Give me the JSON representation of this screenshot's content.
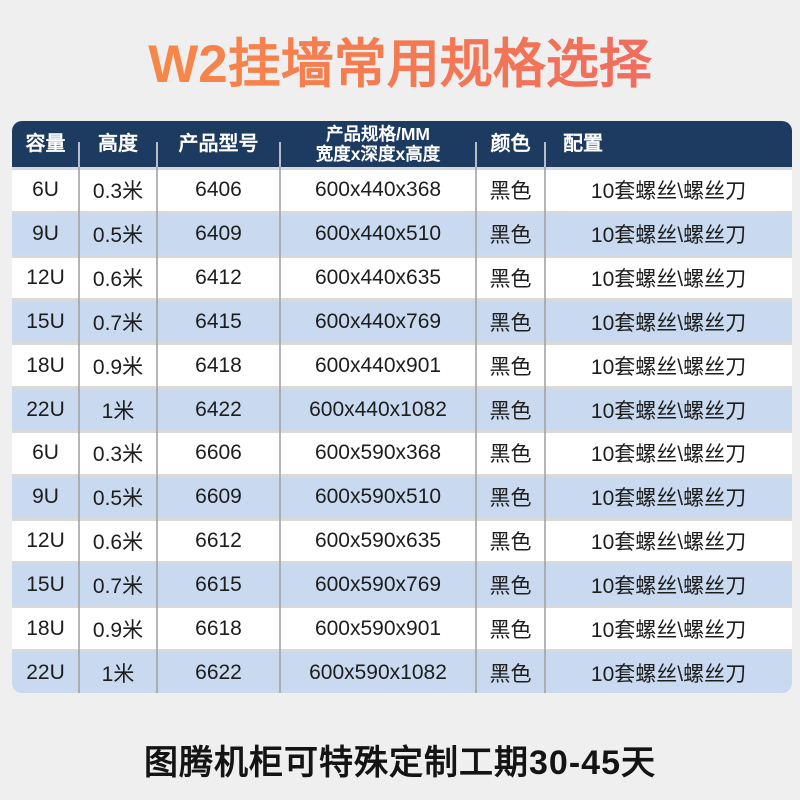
{
  "title": {
    "text": "W2挂墙常用规格选择"
  },
  "colors": {
    "page_bg": "#efeff0",
    "title_gradient_start": "#f88a45",
    "title_gradient_end": "#ef6a60",
    "header_bg": "#1d3b60",
    "header_text": "#ffffff",
    "row_bg": "#ffffff",
    "row_alt_bg": "#c9d9ef",
    "separator": "#d9d9d9"
  },
  "table": {
    "columns": [
      {
        "key": "capacity",
        "label": "容量"
      },
      {
        "key": "height",
        "label": "高度"
      },
      {
        "key": "model",
        "label": "产品型号"
      },
      {
        "key": "spec",
        "label_line1": "产品规格/MM",
        "label_line2": "宽度x深度x高度"
      },
      {
        "key": "color",
        "label": "颜色"
      },
      {
        "key": "config",
        "label": "配置"
      }
    ],
    "rows": [
      {
        "capacity": "6U",
        "height": "0.3米",
        "model": "6406",
        "spec": "600x440x368",
        "color": "黑色",
        "config": "10套螺丝\\螺丝刀"
      },
      {
        "capacity": "9U",
        "height": "0.5米",
        "model": "6409",
        "spec": "600x440x510",
        "color": "黑色",
        "config": "10套螺丝\\螺丝刀"
      },
      {
        "capacity": "12U",
        "height": "0.6米",
        "model": "6412",
        "spec": "600x440x635",
        "color": "黑色",
        "config": "10套螺丝\\螺丝刀"
      },
      {
        "capacity": "15U",
        "height": "0.7米",
        "model": "6415",
        "spec": "600x440x769",
        "color": "黑色",
        "config": "10套螺丝\\螺丝刀"
      },
      {
        "capacity": "18U",
        "height": "0.9米",
        "model": "6418",
        "spec": "600x440x901",
        "color": "黑色",
        "config": "10套螺丝\\螺丝刀"
      },
      {
        "capacity": "22U",
        "height": "1米",
        "model": "6422",
        "spec": "600x440x1082",
        "color": "黑色",
        "config": "10套螺丝\\螺丝刀"
      },
      {
        "capacity": "6U",
        "height": "0.3米",
        "model": "6606",
        "spec": "600x590x368",
        "color": "黑色",
        "config": "10套螺丝\\螺丝刀"
      },
      {
        "capacity": "9U",
        "height": "0.5米",
        "model": "6609",
        "spec": "600x590x510",
        "color": "黑色",
        "config": "10套螺丝\\螺丝刀"
      },
      {
        "capacity": "12U",
        "height": "0.6米",
        "model": "6612",
        "spec": "600x590x635",
        "color": "黑色",
        "config": "10套螺丝\\螺丝刀"
      },
      {
        "capacity": "15U",
        "height": "0.7米",
        "model": "6615",
        "spec": "600x590x769",
        "color": "黑色",
        "config": "10套螺丝\\螺丝刀"
      },
      {
        "capacity": "18U",
        "height": "0.9米",
        "model": "6618",
        "spec": "600x590x901",
        "color": "黑色",
        "config": "10套螺丝\\螺丝刀"
      },
      {
        "capacity": "22U",
        "height": "1米",
        "model": "6622",
        "spec": "600x590x1082",
        "color": "黑色",
        "config": "10套螺丝\\螺丝刀"
      }
    ]
  },
  "footer": {
    "text": "图腾机柜可特殊定制工期30-45天"
  }
}
